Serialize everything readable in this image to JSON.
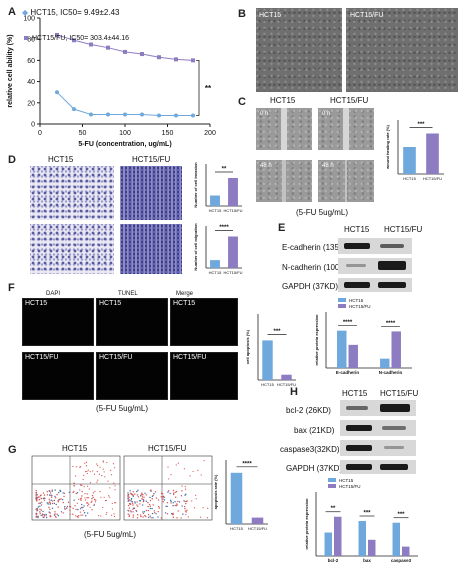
{
  "panels": {
    "A": "A",
    "B": "B",
    "C": "C",
    "D": "D",
    "E": "E",
    "F": "F",
    "G": "G",
    "H": "H"
  },
  "panelA": {
    "legend": [
      "HCT15, IC50= 9.49±2.43",
      "HCT15/FU, IC50= 303.4±44.16"
    ],
    "sig": "**",
    "colors": {
      "hct15": "#6fa8dc",
      "hct15fu": "#8e7cc3"
    }
  },
  "panelB": {
    "labels": [
      "HCT15",
      "HCT15/FU"
    ]
  },
  "panelC": {
    "labels": [
      "HCT15",
      "HCT15/FU"
    ],
    "times": [
      "0 h",
      "0 h",
      "48 h",
      "48 h"
    ],
    "caption": "(5-FU 5ug/mL)",
    "sig": "***"
  },
  "panelD": {
    "labels": [
      "HCT15",
      "HCT15/FU"
    ],
    "sig_top": "**",
    "sig_bottom": "****"
  },
  "panelE": {
    "labels": [
      "HCT15",
      "HCT15/FU"
    ],
    "rows": [
      "E-cadherin (135KD)",
      "N-cadherin (100KD)",
      "GAPDH (37KD)"
    ],
    "legend": [
      "HCT15",
      "HCT15/FU"
    ],
    "sig": [
      "****",
      "****"
    ],
    "ylabel": "relative protein expression",
    "groups": [
      "E-cadherin",
      "N-cadherin"
    ]
  },
  "panelF": {
    "cols": [
      "DAPI",
      "TUNEL",
      "Merge"
    ],
    "rows": [
      "HCT15",
      "HCT15/FU"
    ],
    "caption": "(5-FU 5ug/mL)",
    "sig": "***",
    "ylabel": "cell apoptosis (%)"
  },
  "panelG": {
    "labels": [
      "HCT15",
      "HCT15/FU"
    ],
    "caption": "(5-FU 5ug/mL)",
    "sig": "****",
    "ylabel": "apoptosis rate (%)"
  },
  "panelH": {
    "labels": [
      "HCT15",
      "HCT15/FU"
    ],
    "rows": [
      "bcl-2 (26KD)",
      "bax (21KD)",
      "caspase3(32KD)",
      "GAPDH (37KD)"
    ],
    "legend": [
      "HCT15",
      "HCT15/FU"
    ],
    "sig": [
      "**",
      "***",
      "***"
    ],
    "groups": [
      "bcl-2",
      "bax",
      "caspase3"
    ],
    "ylabel": "relative protein expression"
  },
  "chart_data": [
    {
      "type": "line",
      "panel": "A",
      "ylabel": "relative cell ability (%)",
      "xlabel": "5-FU (concentration, ug/mL)",
      "xlim": [
        0,
        200
      ],
      "ylim": [
        0,
        100
      ],
      "xticks": [
        0,
        50,
        100,
        150,
        200
      ],
      "yticks": [
        0,
        20,
        40,
        60,
        80,
        100
      ],
      "x": [
        20,
        40,
        60,
        80,
        100,
        120,
        140,
        160,
        180
      ],
      "series": [
        {
          "name": "HCT15, IC50= 9.49±2.43",
          "values": [
            30,
            14,
            9,
            9,
            9,
            9,
            8,
            8,
            8
          ]
        },
        {
          "name": "HCT15/FU, IC50= 303.4±44.16",
          "values": [
            84,
            79,
            75,
            72,
            68,
            66,
            63,
            61,
            60
          ]
        }
      ]
    },
    {
      "type": "bar",
      "panel": "C",
      "ylabel": "wound healing rate (%)",
      "categories": [
        "HCT15",
        "HCT15/FU"
      ],
      "values": [
        0.4,
        0.6
      ],
      "ylim": [
        0,
        0.8
      ]
    },
    {
      "type": "bar",
      "panel": "D-top",
      "ylabel": "Number of cell invasion",
      "categories": [
        "HCT15",
        "HCT15/FU"
      ],
      "values": [
        150,
        400
      ],
      "ylim": [
        0,
        600
      ]
    },
    {
      "type": "bar",
      "panel": "D-bottom",
      "ylabel": "Number of cell migration",
      "categories": [
        "HCT15",
        "HCT15/FU"
      ],
      "values": [
        150,
        600
      ],
      "ylim": [
        0,
        800
      ]
    },
    {
      "type": "bar",
      "panel": "E",
      "ylabel": "relative protein expression",
      "categories": [
        "E-cadherin",
        "N-cadherin"
      ],
      "series": [
        {
          "name": "HCT15",
          "values": [
            1.0,
            0.25
          ]
        },
        {
          "name": "HCT15/FU",
          "values": [
            0.62,
            0.98
          ]
        }
      ],
      "ylim": [
        0,
        1.5
      ]
    },
    {
      "type": "bar",
      "panel": "F",
      "ylabel": "cell apoptosis (%)",
      "categories": [
        "HCT15",
        "HCT15/FU"
      ],
      "values": [
        30,
        4
      ],
      "ylim": [
        0,
        50
      ]
    },
    {
      "type": "bar",
      "panel": "G",
      "ylabel": "apoptosis rate (%)",
      "categories": [
        "HCT15",
        "HCT15/FU"
      ],
      "values": [
        16,
        2
      ],
      "ylim": [
        0,
        20
      ]
    },
    {
      "type": "bar",
      "panel": "H",
      "ylabel": "relative protein expression",
      "categories": [
        "bcl-2",
        "bax",
        "caspase3"
      ],
      "series": [
        {
          "name": "HCT15",
          "values": [
            0.55,
            0.82,
            0.78
          ]
        },
        {
          "name": "HCT15/FU",
          "values": [
            0.92,
            0.38,
            0.22
          ]
        }
      ],
      "ylim": [
        0,
        1.5
      ]
    }
  ]
}
